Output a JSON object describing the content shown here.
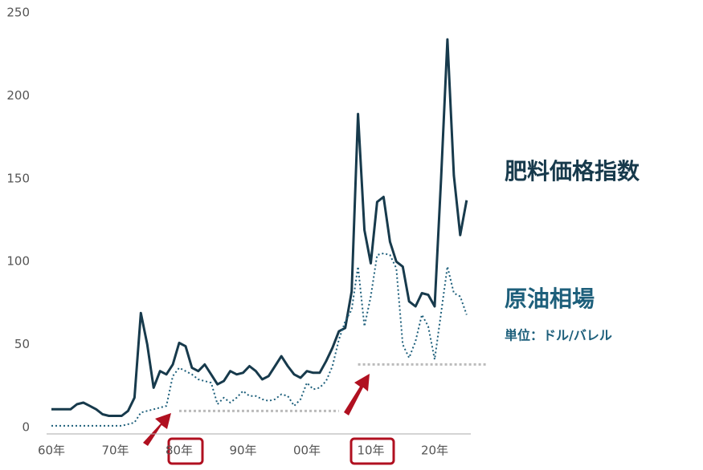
{
  "chart_data": {
    "type": "line",
    "categories": [
      "60年",
      null,
      null,
      null,
      null,
      null,
      null,
      null,
      null,
      null,
      "70年",
      null,
      null,
      null,
      null,
      null,
      null,
      null,
      null,
      null,
      "80年",
      null,
      null,
      null,
      null,
      null,
      null,
      null,
      null,
      null,
      "90年",
      null,
      null,
      null,
      null,
      null,
      null,
      null,
      null,
      null,
      "00年",
      null,
      null,
      null,
      null,
      null,
      null,
      null,
      null,
      null,
      "10年",
      null,
      null,
      null,
      null,
      null,
      null,
      null,
      null,
      null,
      "20年",
      null,
      null,
      null,
      null,
      null
    ],
    "series": [
      {
        "name": "肥料価格指数",
        "color": "#173a4c",
        "style": "solid",
        "values": [
          11,
          11,
          11,
          11,
          14,
          15,
          13,
          11,
          8,
          7,
          7,
          7,
          10,
          18,
          69,
          50,
          24,
          34,
          32,
          38,
          51,
          49,
          36,
          34,
          38,
          32,
          26,
          28,
          34,
          32,
          33,
          37,
          34,
          29,
          31,
          37,
          43,
          37,
          32,
          30,
          34,
          33,
          33,
          40,
          48,
          58,
          60,
          82,
          189,
          119,
          99,
          136,
          139,
          112,
          100,
          97,
          76,
          73,
          81,
          80,
          73,
          150,
          234,
          152,
          116,
          137
        ]
      },
      {
        "name": "原油相場",
        "color": "#1d5f7b",
        "style": "dotted",
        "values": [
          1,
          1,
          1,
          1,
          1,
          1,
          1,
          1,
          1,
          1,
          1,
          1,
          2,
          3,
          9,
          10,
          11,
          12,
          13,
          31,
          36,
          34,
          32,
          29,
          28,
          27,
          14,
          18,
          15,
          18,
          22,
          19,
          19,
          17,
          16,
          17,
          20,
          19,
          13,
          17,
          27,
          23,
          24,
          28,
          37,
          53,
          64,
          71,
          97,
          61,
          79,
          104,
          105,
          104,
          96,
          50,
          42,
          52,
          68,
          61,
          41,
          69,
          97,
          81,
          79,
          68
        ]
      }
    ],
    "unit_note": "単位：ドル/バレル",
    "reference_lines": [
      {
        "value": 10,
        "color": "#bbbbbb"
      },
      {
        "value": 38,
        "color": "#bbbbbb"
      }
    ],
    "ylim": [
      0,
      250
    ],
    "yticks": [
      0,
      50,
      100,
      150,
      200,
      250
    ],
    "grid": false
  }
}
